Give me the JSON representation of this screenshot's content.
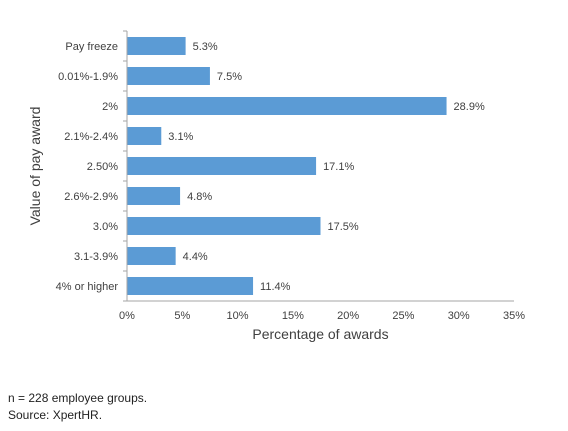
{
  "chart_data": {
    "type": "bar",
    "orientation": "horizontal",
    "categories": [
      "Pay freeze",
      "0.01%-1.9%",
      "2%",
      "2.1%-2.4%",
      "2.50%",
      "2.6%-2.9%",
      "3.0%",
      "3.1-3.9%",
      "4% or higher"
    ],
    "values": [
      5.3,
      7.5,
      28.9,
      3.1,
      17.1,
      4.8,
      17.5,
      4.4,
      11.4
    ],
    "value_labels": [
      "5.3%",
      "7.5%",
      "28.9%",
      "3.1%",
      "17.1%",
      "4.8%",
      "17.5%",
      "4.4%",
      "11.4%"
    ],
    "xlabel": "Percentage of awards",
    "ylabel": "Value of pay award",
    "xlim": [
      0,
      35
    ],
    "xticks": [
      0,
      5,
      10,
      15,
      20,
      25,
      30,
      35
    ],
    "xtick_labels": [
      "0%",
      "5%",
      "10%",
      "15%",
      "20%",
      "25%",
      "30%",
      "35%"
    ],
    "grid": false,
    "legend": "none",
    "bar_color": "#5b9bd5"
  },
  "notes": {
    "sample": "n = 228 employee groups.",
    "source": "Source: XpertHR."
  }
}
